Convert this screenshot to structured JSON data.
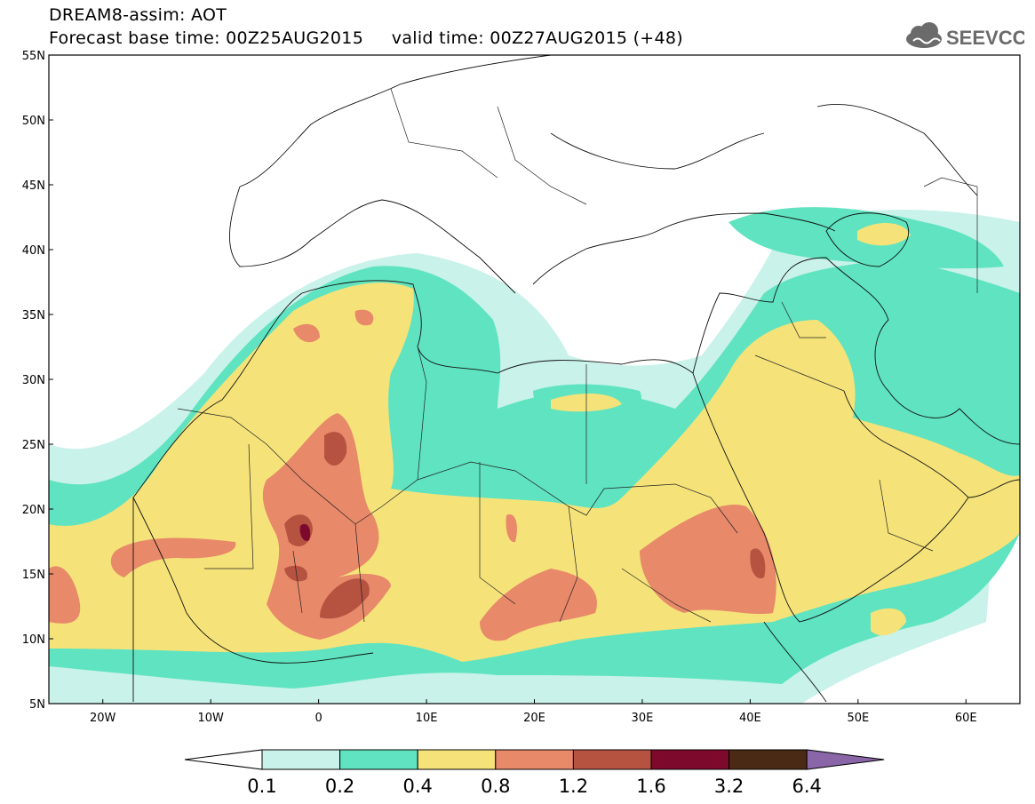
{
  "header": {
    "line1": "DREAM8-assim: AOT",
    "line2": "Forecast base time: 00Z25AUG2015     valid time: 00Z27AUG2015 (+48)"
  },
  "logo": {
    "text": "SEEVCCC",
    "icon": "cloud-logo-icon",
    "color": "#6b6b6b"
  },
  "map": {
    "lon_range": [
      -25,
      65
    ],
    "lat_range": [
      5,
      55
    ],
    "lat_labels": [
      "5N",
      "10N",
      "15N",
      "20N",
      "25N",
      "30N",
      "35N",
      "40N",
      "45N",
      "50N",
      "55N"
    ],
    "lon_labels": [
      "20W",
      "10W",
      "0",
      "10E",
      "20E",
      "30E",
      "40E",
      "50E",
      "60E"
    ],
    "variable": "AOT"
  },
  "colorbar": {
    "labels": [
      "0.1",
      "0.2",
      "0.4",
      "0.8",
      "1.2",
      "1.6",
      "3.2",
      "6.4"
    ],
    "colors": [
      "#ffffff",
      "#c8f2ea",
      "#5fe3c0",
      "#f5e37a",
      "#e8896a",
      "#b55240",
      "#7d0a2c",
      "#4a2a14",
      "#8a66a8"
    ]
  }
}
